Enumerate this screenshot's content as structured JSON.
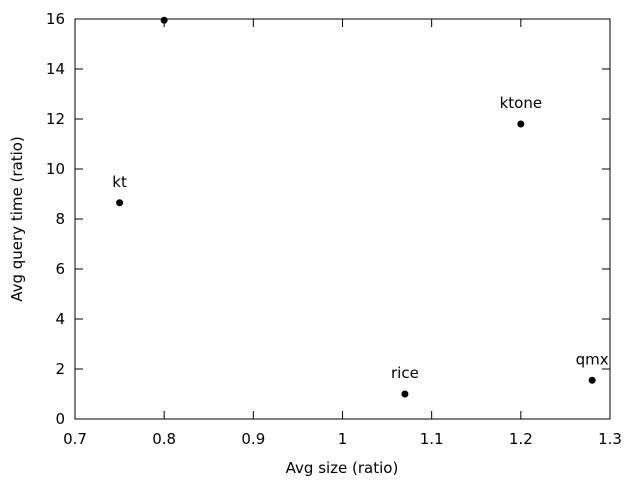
{
  "chart_data": {
    "type": "scatter",
    "title": "",
    "xlabel": "Avg size (ratio)",
    "ylabel": "Avg query time (ratio)",
    "xlim": [
      0.7,
      1.3
    ],
    "ylim": [
      0,
      16
    ],
    "xticks": [
      0.7,
      0.8,
      0.9,
      1.0,
      1.1,
      1.2,
      1.3
    ],
    "xtick_labels": [
      "0.7",
      "0.8",
      "0.9",
      "1",
      "1.1",
      "1.2",
      "1.3"
    ],
    "yticks": [
      0,
      2,
      4,
      6,
      8,
      10,
      12,
      14,
      16
    ],
    "ytick_labels": [
      "0",
      "2",
      "4",
      "6",
      "8",
      "10",
      "12",
      "14",
      "16"
    ],
    "grid": false,
    "legend": "none",
    "marker_color": "#000000",
    "points": [
      {
        "label": "",
        "x": 0.8,
        "y": 15.95
      },
      {
        "label": "kt",
        "x": 0.75,
        "y": 8.65
      },
      {
        "label": "ktone",
        "x": 1.2,
        "y": 11.8
      },
      {
        "label": "rice",
        "x": 1.07,
        "y": 1.0
      },
      {
        "label": "qmx",
        "x": 1.28,
        "y": 1.55
      }
    ]
  }
}
